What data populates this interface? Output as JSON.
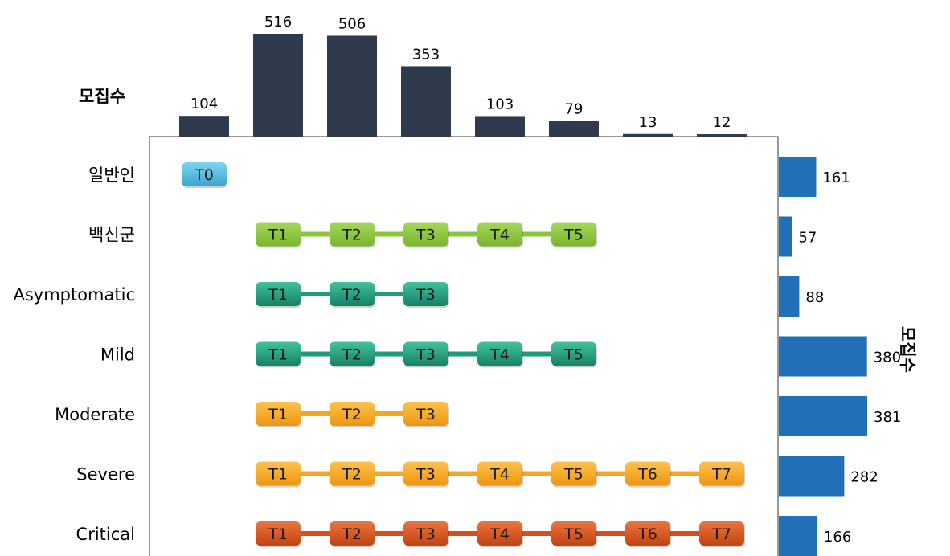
{
  "labels": {
    "top_axis": "모집수",
    "right_axis": "모집수"
  },
  "colors": {
    "top_bar": "#2f3b4c",
    "right_bar": "#2270b8",
    "connector": {
      "general": "#53b6d8",
      "vaccine": "#8cc63f",
      "asymptomatic": "#1f9a7c",
      "mild": "#1f9a7c",
      "moderate": "#f5a623",
      "severe": "#f5a623",
      "critical": "#d4511e"
    },
    "pill": {
      "general": [
        "#7fd3ee",
        "#3aa6cc"
      ],
      "vaccine": [
        "#a6d85a",
        "#79b52c"
      ],
      "asymptomatic": [
        "#42c29d",
        "#168066"
      ],
      "mild": [
        "#42c29d",
        "#168066"
      ],
      "moderate": [
        "#ffc24d",
        "#ee9610"
      ],
      "severe": [
        "#ffc24d",
        "#ee9610"
      ],
      "critical": [
        "#ec7440",
        "#c2430f"
      ]
    }
  },
  "chart_data": [
    {
      "type": "bar",
      "orientation": "vertical",
      "ylabel": "모집수",
      "categories": [
        "T0",
        "T1",
        "T2",
        "T3",
        "T4",
        "T5",
        "T6",
        "T7"
      ],
      "values": [
        104,
        516,
        506,
        353,
        103,
        79,
        13,
        12
      ],
      "data_labels": [
        "104",
        "516",
        "506",
        "353",
        "103",
        "79",
        "13",
        "12"
      ]
    },
    {
      "type": "bar",
      "orientation": "horizontal",
      "xlabel": "모집수",
      "categories": [
        "일반인",
        "백신군",
        "Asymptomatic",
        "Mild",
        "Moderate",
        "Severe",
        "Critical"
      ],
      "values": [
        161,
        57,
        88,
        380,
        381,
        282,
        166
      ],
      "data_labels": [
        "161",
        "57",
        "88",
        "380",
        "381",
        "282",
        "166"
      ]
    },
    {
      "type": "table",
      "title": "",
      "rows": [
        {
          "key": "general",
          "group": "일반인",
          "timepoints": [
            "T0"
          ]
        },
        {
          "key": "vaccine",
          "group": "백신군",
          "timepoints": [
            "T1",
            "T2",
            "T3",
            "T4",
            "T5"
          ]
        },
        {
          "key": "asymptomatic",
          "group": "Asymptomatic",
          "timepoints": [
            "T1",
            "T2",
            "T3"
          ]
        },
        {
          "key": "mild",
          "group": "Mild",
          "timepoints": [
            "T1",
            "T2",
            "T3",
            "T4",
            "T5"
          ]
        },
        {
          "key": "moderate",
          "group": "Moderate",
          "timepoints": [
            "T1",
            "T2",
            "T3"
          ]
        },
        {
          "key": "severe",
          "group": "Severe",
          "timepoints": [
            "T1",
            "T2",
            "T3",
            "T4",
            "T5",
            "T6",
            "T7"
          ]
        },
        {
          "key": "critical",
          "group": "Critical",
          "timepoints": [
            "T1",
            "T2",
            "T3",
            "T4",
            "T5",
            "T6",
            "T7"
          ]
        }
      ]
    }
  ]
}
